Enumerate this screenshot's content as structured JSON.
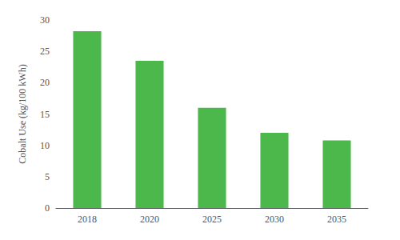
{
  "chart_data": {
    "type": "bar",
    "categories": [
      "2018",
      "2020",
      "2025",
      "2030",
      "2035"
    ],
    "values": [
      28.2,
      23.5,
      16.0,
      12.0,
      10.8
    ],
    "color": "#4cb84c",
    "ylabel": "Cobalt Use (kg/100 kWh)",
    "ylim": [
      0,
      30
    ],
    "yticks": [
      0,
      5,
      10,
      15,
      20,
      25,
      30
    ],
    "grid": false
  }
}
